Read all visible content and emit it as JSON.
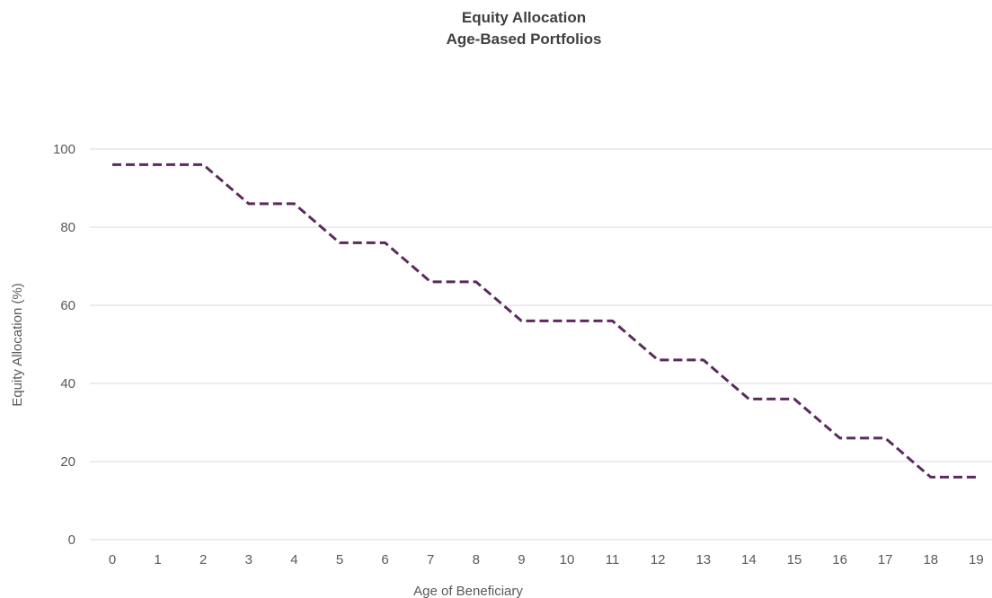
{
  "chart_data": {
    "type": "line",
    "title": "Equity Allocation",
    "subtitle": "Age-Based Portfolios",
    "xlabel": "Age of Beneficiary",
    "ylabel": "Equity Allocation (%)",
    "categories": [
      "0",
      "1",
      "2",
      "3",
      "4",
      "5",
      "6",
      "7",
      "8",
      "9",
      "10",
      "11",
      "12",
      "13",
      "14",
      "15",
      "16",
      "17",
      "18",
      "19"
    ],
    "y_ticks": [
      "0",
      "20",
      "40",
      "60",
      "80",
      "100"
    ],
    "ylim": [
      0,
      100
    ],
    "grid": "horizontal",
    "legend": "none",
    "series": [
      {
        "values": [
          96,
          96,
          96,
          86,
          86,
          76,
          76,
          66,
          66,
          56,
          56,
          56,
          46,
          46,
          36,
          36,
          26,
          26,
          16,
          16
        ],
        "color": "#5b2a5e",
        "style": "dashed"
      }
    ]
  },
  "colors": {
    "grid": "#d9d9d9",
    "text": "#595959",
    "title": "#404040"
  }
}
